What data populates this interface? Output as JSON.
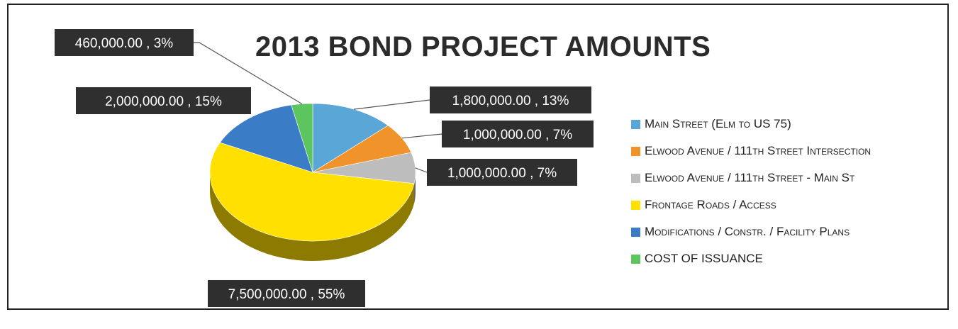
{
  "chart_data": {
    "type": "pie",
    "title": "2013 BOND PROJECT AMOUNTS",
    "slices": [
      {
        "name": "Main Street (Elm to US 75)",
        "value": 1800000,
        "percent": 13,
        "label": "1,800,000.00 , 13%",
        "color": "#5aa6d6"
      },
      {
        "name": "Elwood Avenue / 111th Street Intersection",
        "value": 1000000,
        "percent": 7,
        "label": "1,000,000.00 , 7%",
        "color": "#f0932a"
      },
      {
        "name": "Elwood Avenue / 111th Street - Main St",
        "value": 1000000,
        "percent": 7,
        "label": "1,000,000.00 , 7%",
        "color": "#bdbdbd"
      },
      {
        "name": "Frontage Roads / Access",
        "value": 7500000,
        "percent": 55,
        "label": "7,500,000.00 , 55%",
        "color": "#ffe000"
      },
      {
        "name": "Modifications / Constr. / Facility Plans",
        "value": 2000000,
        "percent": 15,
        "label": "2,000,000.00 , 15%",
        "color": "#3b7cc6"
      },
      {
        "name": "COST OF ISSUANCE",
        "value": 460000,
        "percent": 3,
        "label": "460,000.00 , 3%",
        "color": "#5dc55d"
      }
    ],
    "legend_position": "right"
  }
}
